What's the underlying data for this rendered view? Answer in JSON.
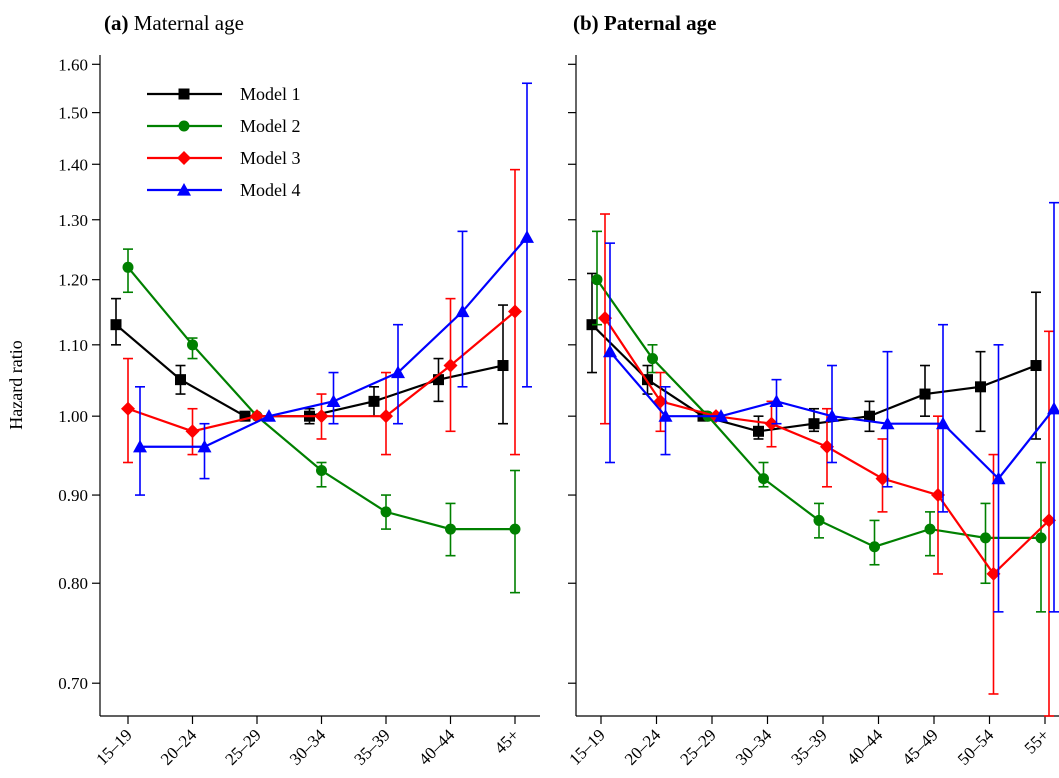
{
  "figure": {
    "ylabel": "Hazard ratio",
    "yticks": [
      "0.70",
      "0.80",
      "0.90",
      "1.00",
      "1.10",
      "1.20",
      "1.30",
      "1.40",
      "1.50",
      "1.60"
    ],
    "ytick_values": [
      0.7,
      0.8,
      0.9,
      1.0,
      1.1,
      1.2,
      1.3,
      1.4,
      1.5,
      1.6
    ],
    "ylim": [
      0.67,
      1.62
    ],
    "yscale": "log",
    "legend": {
      "placement": "top-left of panel (a)",
      "entries": [
        {
          "name": "Model 1",
          "color": "#000000",
          "marker": "square"
        },
        {
          "name": "Model 2",
          "color": "#008000",
          "marker": "circle"
        },
        {
          "name": "Model 3",
          "color": "#ff0000",
          "marker": "diamond"
        },
        {
          "name": "Model 4",
          "color": "#0000ff",
          "marker": "triangle"
        }
      ]
    }
  },
  "chart_data": [
    {
      "type": "line",
      "panel_letter": "(a)",
      "title": "Maternal age",
      "ylabel": "Hazard ratio",
      "categories": [
        "15–19",
        "20–24",
        "25–29",
        "30–34",
        "35–39",
        "40–44",
        "45+"
      ],
      "series": [
        {
          "name": "Model 1",
          "color": "#000000",
          "marker": "square",
          "values": [
            1.13,
            1.05,
            1.0,
            1.0,
            1.02,
            1.05,
            1.07
          ],
          "lower": [
            1.1,
            1.03,
            1.0,
            0.99,
            1.0,
            1.02,
            0.99
          ],
          "upper": [
            1.17,
            1.07,
            1.0,
            1.01,
            1.04,
            1.08,
            1.16
          ]
        },
        {
          "name": "Model 2",
          "color": "#008000",
          "marker": "circle",
          "values": [
            1.22,
            1.1,
            1.0,
            0.93,
            0.88,
            0.86,
            0.86
          ],
          "lower": [
            1.18,
            1.08,
            1.0,
            0.91,
            0.86,
            0.83,
            0.79
          ],
          "upper": [
            1.25,
            1.11,
            1.0,
            0.94,
            0.9,
            0.89,
            0.93
          ]
        },
        {
          "name": "Model 3",
          "color": "#ff0000",
          "marker": "diamond",
          "values": [
            1.01,
            0.98,
            1.0,
            1.0,
            1.0,
            1.07,
            1.15
          ],
          "lower": [
            0.94,
            0.95,
            1.0,
            0.97,
            0.95,
            0.98,
            0.95
          ],
          "upper": [
            1.08,
            1.01,
            1.0,
            1.03,
            1.06,
            1.17,
            1.39
          ]
        },
        {
          "name": "Model 4",
          "color": "#0000ff",
          "marker": "triangle",
          "values": [
            0.96,
            0.96,
            1.0,
            1.02,
            1.06,
            1.15,
            1.27
          ],
          "lower": [
            0.9,
            0.92,
            1.0,
            0.99,
            0.99,
            1.04,
            1.04
          ],
          "upper": [
            1.04,
            0.99,
            1.0,
            1.06,
            1.13,
            1.28,
            1.56
          ]
        }
      ]
    },
    {
      "type": "line",
      "panel_letter": "(b)",
      "title": "Paternal age",
      "ylabel": "",
      "categories": [
        "15–19",
        "20–24",
        "25–29",
        "30–34",
        "35–39",
        "40–44",
        "45–49",
        "50–54",
        "55+"
      ],
      "series": [
        {
          "name": "Model 1",
          "color": "#000000",
          "marker": "square",
          "values": [
            1.13,
            1.05,
            1.0,
            0.98,
            0.99,
            1.0,
            1.03,
            1.04,
            1.07
          ],
          "lower": [
            1.06,
            1.03,
            1.0,
            0.97,
            0.98,
            0.98,
            1.0,
            0.98,
            0.97
          ],
          "upper": [
            1.21,
            1.07,
            1.0,
            1.0,
            1.01,
            1.02,
            1.07,
            1.09,
            1.18
          ]
        },
        {
          "name": "Model 2",
          "color": "#008000",
          "marker": "circle",
          "values": [
            1.2,
            1.08,
            1.0,
            0.92,
            0.87,
            0.84,
            0.86,
            0.85,
            0.85
          ],
          "lower": [
            1.13,
            1.06,
            1.0,
            0.91,
            0.85,
            0.82,
            0.83,
            0.8,
            0.77
          ],
          "upper": [
            1.28,
            1.1,
            1.0,
            0.94,
            0.89,
            0.87,
            0.88,
            0.89,
            0.94
          ]
        },
        {
          "name": "Model 3",
          "color": "#ff0000",
          "marker": "diamond",
          "values": [
            1.14,
            1.02,
            1.0,
            0.99,
            0.96,
            0.92,
            0.9,
            0.81,
            0.87
          ],
          "lower": [
            0.99,
            0.98,
            1.0,
            0.96,
            0.91,
            0.88,
            0.81,
            0.69,
            0.67
          ],
          "upper": [
            1.31,
            1.06,
            1.0,
            1.02,
            1.01,
            0.97,
            1.0,
            0.95,
            1.12
          ]
        },
        {
          "name": "Model 4",
          "color": "#0000ff",
          "marker": "triangle",
          "values": [
            1.09,
            1.0,
            1.0,
            1.02,
            1.0,
            0.99,
            0.99,
            0.92,
            1.01
          ],
          "lower": [
            0.94,
            0.95,
            1.0,
            0.99,
            0.94,
            0.91,
            0.88,
            0.77,
            0.77
          ],
          "upper": [
            1.26,
            1.04,
            1.0,
            1.05,
            1.07,
            1.09,
            1.13,
            1.1,
            1.33
          ]
        }
      ]
    }
  ]
}
